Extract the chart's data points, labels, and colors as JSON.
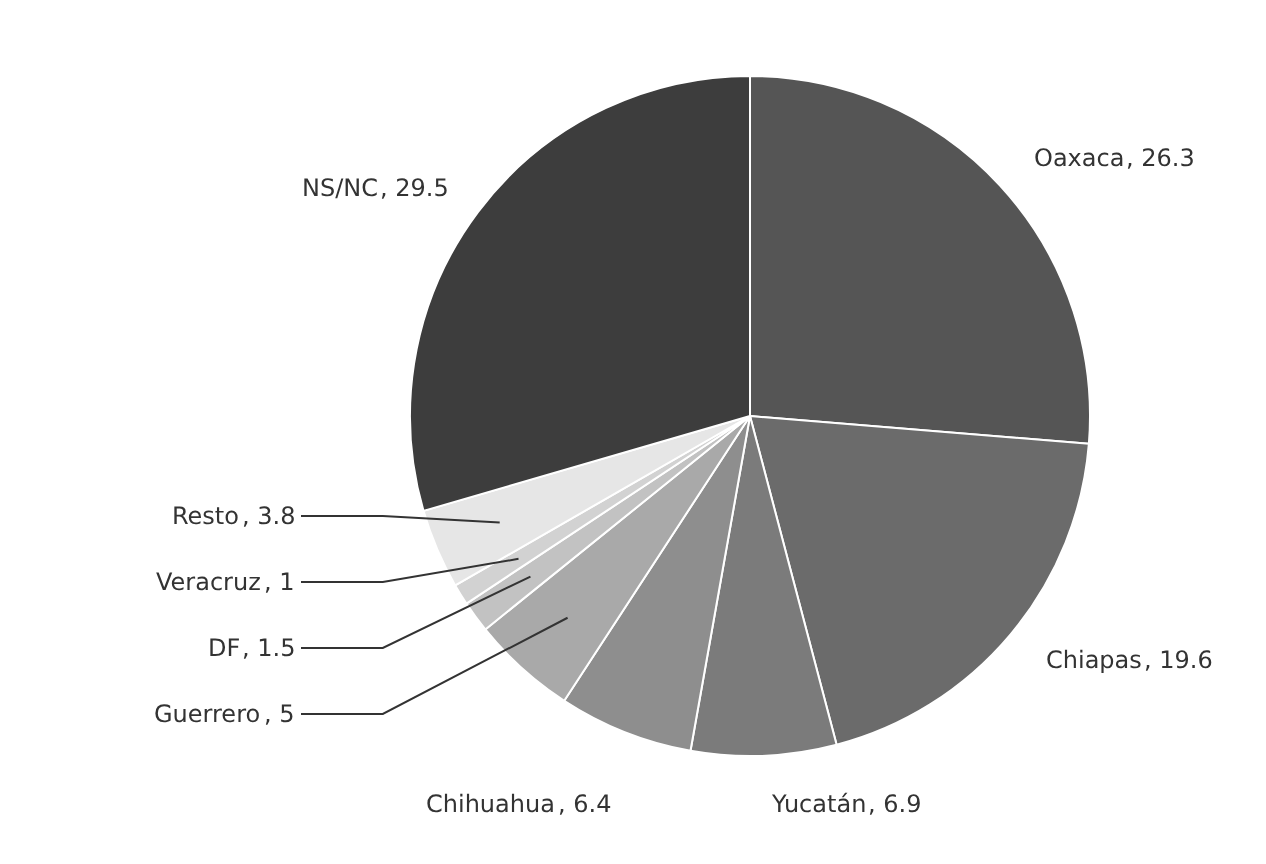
{
  "chart_data": {
    "type": "pie",
    "categories": [
      "Oaxaca",
      "Chiapas",
      "Yucatán",
      "Chihuahua",
      "Guerrero",
      "DF",
      "Veracruz",
      "Resto",
      "NS/NC"
    ],
    "values": [
      26.3,
      19.6,
      6.9,
      6.4,
      5,
      1.5,
      1,
      3.8,
      29.5
    ],
    "colors": [
      "#555555",
      "#6b6b6b",
      "#7b7b7b",
      "#8e8e8e",
      "#a9a9a9",
      "#c2c2c2",
      "#d2d2d2",
      "#e6e6e6",
      "#3d3d3d"
    ],
    "value_labels": [
      ", 26.3",
      ", 19.6",
      ", 6.9",
      ", 6.4",
      ", 5",
      ", 1.5",
      ", 1",
      ", 3.8",
      ", 29.5"
    ],
    "legend": false
  }
}
